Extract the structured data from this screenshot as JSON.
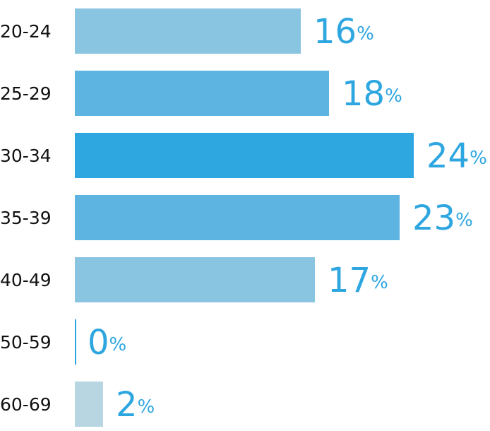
{
  "chart_data": {
    "type": "hbar",
    "categories": [
      "20-24",
      "25-29",
      "30-34",
      "35-39",
      "40-49",
      "50-59",
      "60-69"
    ],
    "values": [
      16,
      18,
      24,
      23,
      17,
      0,
      2
    ],
    "value_labels": [
      "16%",
      "18%",
      "24%",
      "23%",
      "17%",
      "0%",
      "2%"
    ],
    "colors": [
      "#89c4e0",
      "#5db4e0",
      "#2ea6e0",
      "#5db4e0",
      "#89c4e0",
      "#2ea6e0",
      "#b7d6e2"
    ],
    "label_color": "#2ea6e0"
  }
}
